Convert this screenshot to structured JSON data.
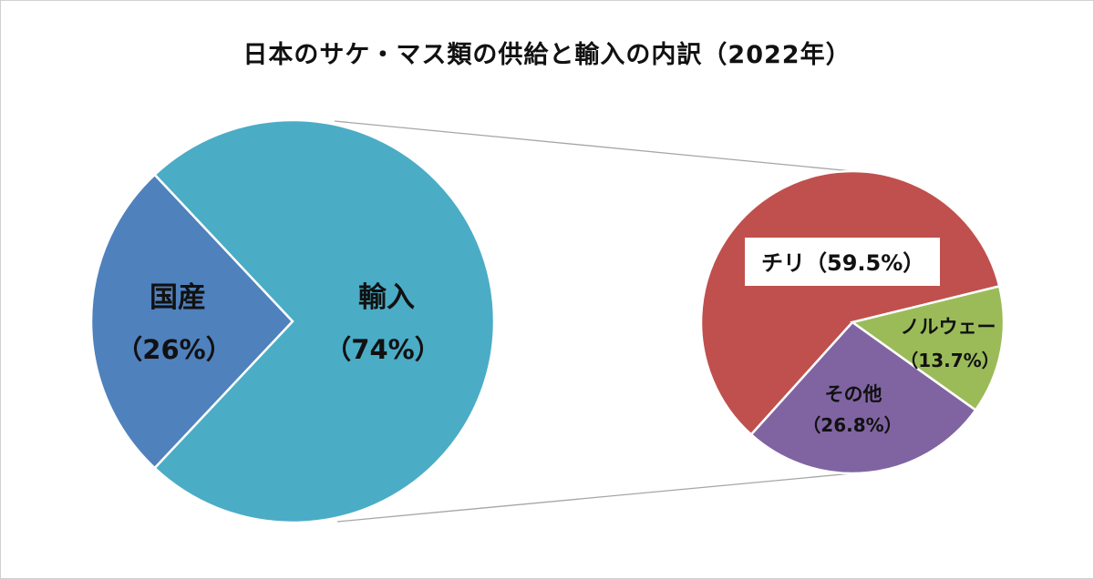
{
  "chart_data": [
    {
      "type": "pie",
      "title": "日本のサケ・マス類の供給と輸入の内訳（2022年）",
      "slices": [
        {
          "name": "国産",
          "value": 26,
          "label": "（26%）",
          "color": "#4F81BD"
        },
        {
          "name": "輸入",
          "value": 74,
          "label": "（74%）",
          "color": "#4BACC6"
        }
      ]
    },
    {
      "type": "pie",
      "parent": "輸入",
      "slices": [
        {
          "name": "チリ",
          "value": 59.5,
          "label": "チリ（59.5%）",
          "color": "#C0504D"
        },
        {
          "name": "ノルウェー",
          "value": 13.7,
          "label": "（13.7%）",
          "display_name": "ノルウェー",
          "color": "#9BBB59"
        },
        {
          "name": "その他",
          "value": 26.8,
          "label": "（26.8%）",
          "color": "#8064A2"
        }
      ]
    }
  ]
}
